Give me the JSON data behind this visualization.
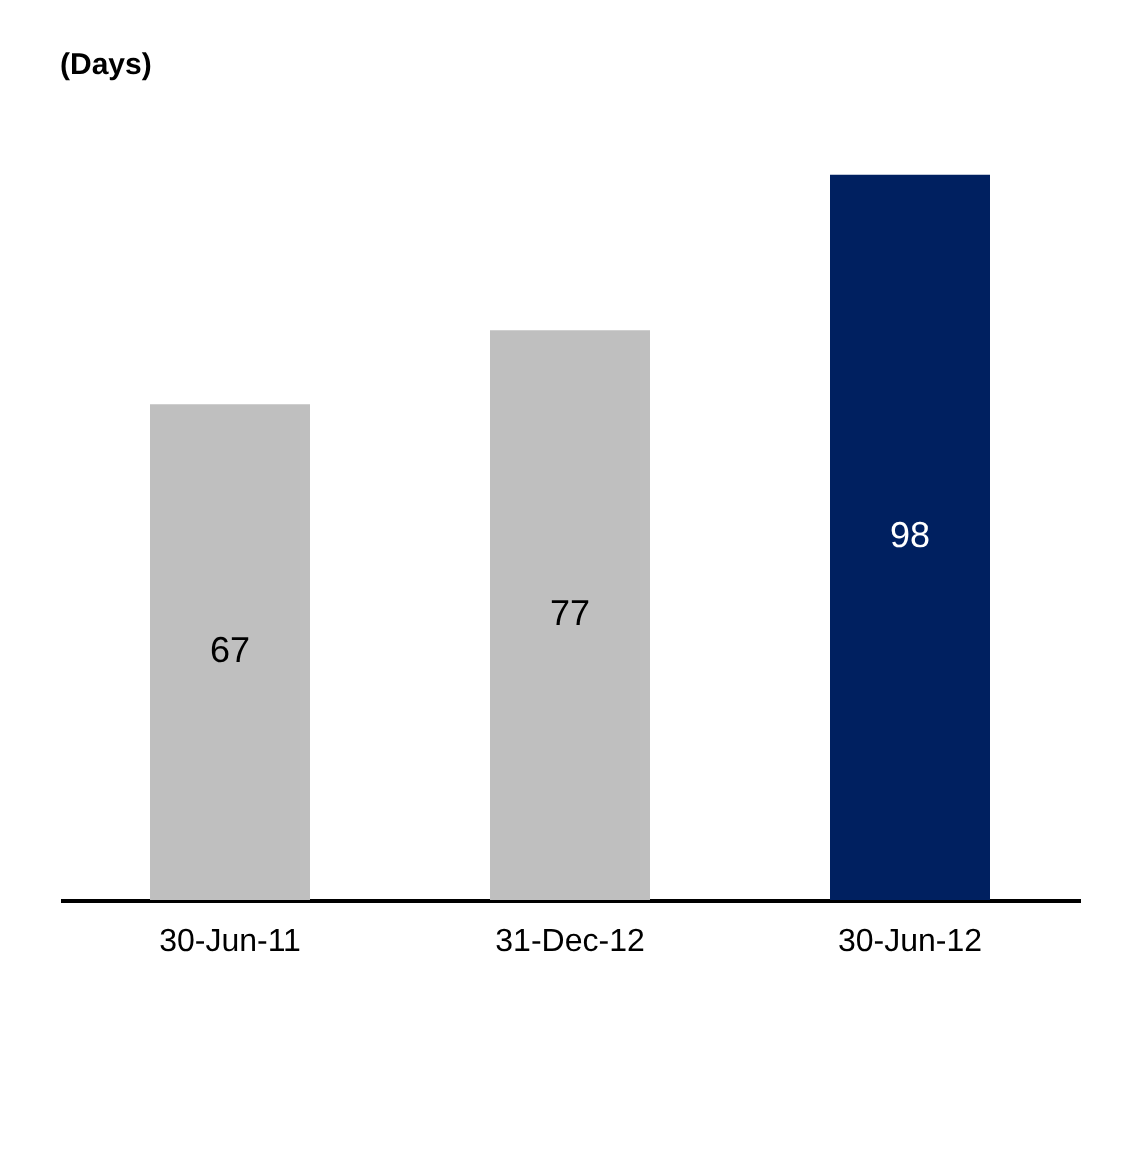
{
  "chart_data": {
    "type": "bar",
    "title": "(Days)",
    "categories": [
      "30-Jun-11",
      "31-Dec-12",
      "30-Jun-12"
    ],
    "values": [
      67,
      77,
      98
    ],
    "colors": [
      "#bfbfbf",
      "#bfbfbf",
      "#002060"
    ],
    "data_labels": true
  }
}
